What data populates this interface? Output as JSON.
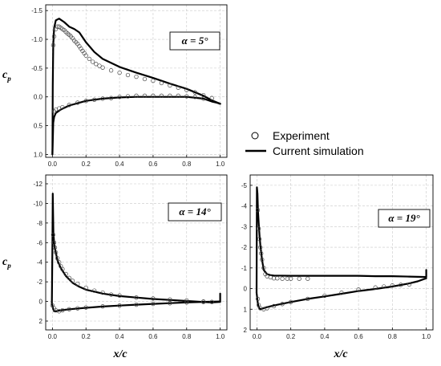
{
  "legend": {
    "items": [
      {
        "label": "Experiment",
        "marker": "circle"
      },
      {
        "label": "Current simulation",
        "marker": "line"
      }
    ]
  },
  "labels": {
    "ylabel_main": "c",
    "ylabel_sub": "p",
    "xlabel": "x/c"
  },
  "chart_data": [
    {
      "type": "line",
      "annotation": "α = 5°",
      "xlim": [
        -0.04,
        1.04
      ],
      "ylim": [
        1.05,
        -1.6
      ],
      "y_inverted": true,
      "grid": true,
      "x_ticks": [
        "0.0",
        "0.2",
        "0.4",
        "0.6",
        "0.8",
        "1.0"
      ],
      "y_ticks": [
        "-1.5",
        "-1.0",
        "-0.5",
        "0.0",
        "0.5",
        "1.0"
      ],
      "x_tick_values": [
        0,
        0.2,
        0.4,
        0.6,
        0.8,
        1.0
      ],
      "y_tick_values": [
        -1.5,
        -1.0,
        -0.5,
        0,
        0.5,
        1.0
      ],
      "series": [
        {
          "name": "Current simulation",
          "style": "line",
          "paths": [
            {
              "x": [
                0,
                0.002,
                0.005,
                0.01,
                0.02,
                0.04,
                0.07,
                0.1,
                0.13,
                0.16,
                0.2,
                0.25,
                0.3,
                0.4,
                0.5,
                0.6,
                0.7,
                0.8,
                0.9,
                0.95,
                1.0
              ],
              "y": [
                1.0,
                -0.2,
                -0.9,
                -1.2,
                -1.33,
                -1.36,
                -1.3,
                -1.22,
                -1.18,
                -1.12,
                -0.95,
                -0.78,
                -0.66,
                -0.52,
                -0.42,
                -0.33,
                -0.23,
                -0.14,
                -0.02,
                0.06,
                0.12
              ]
            },
            {
              "x": [
                0,
                0.005,
                0.01,
                0.02,
                0.05,
                0.1,
                0.2,
                0.3,
                0.4,
                0.5,
                0.6,
                0.7,
                0.8,
                0.9,
                0.95,
                0.98,
                1.0
              ],
              "y": [
                1.0,
                0.45,
                0.35,
                0.28,
                0.22,
                0.15,
                0.07,
                0.03,
                0.01,
                0.0,
                0.0,
                0.0,
                0.0,
                0.03,
                0.08,
                0.1,
                0.12
              ]
            }
          ]
        },
        {
          "name": "Experiment",
          "style": "markers",
          "paths": [
            {
              "x": [
                0.005,
                0.01,
                0.02,
                0.03,
                0.04,
                0.05,
                0.06,
                0.07,
                0.08,
                0.09,
                0.1,
                0.11,
                0.12,
                0.13,
                0.14,
                0.15,
                0.16,
                0.17,
                0.18,
                0.19,
                0.2,
                0.22,
                0.24,
                0.26,
                0.28,
                0.3,
                0.35,
                0.4,
                0.45,
                0.5,
                0.55,
                0.6,
                0.65,
                0.7,
                0.75,
                0.8,
                0.85,
                0.9,
                0.95
              ],
              "y": [
                -0.9,
                -1.05,
                -1.18,
                -1.22,
                -1.22,
                -1.2,
                -1.18,
                -1.16,
                -1.13,
                -1.1,
                -1.08,
                -1.05,
                -1.02,
                -0.98,
                -0.95,
                -0.92,
                -0.88,
                -0.84,
                -0.8,
                -0.76,
                -0.72,
                -0.66,
                -0.61,
                -0.57,
                -0.54,
                -0.51,
                -0.46,
                -0.42,
                -0.38,
                -0.35,
                -0.31,
                -0.28,
                -0.24,
                -0.2,
                -0.16,
                -0.12,
                -0.08,
                -0.03,
                0.02
              ]
            },
            {
              "x": [
                0.01,
                0.02,
                0.04,
                0.06,
                0.1,
                0.15,
                0.2,
                0.25,
                0.3,
                0.35,
                0.4,
                0.45,
                0.5,
                0.55,
                0.6,
                0.65,
                0.7,
                0.75,
                0.8,
                0.85,
                0.9
              ],
              "y": [
                0.25,
                0.22,
                0.2,
                0.18,
                0.14,
                0.1,
                0.07,
                0.05,
                0.03,
                0.02,
                0.0,
                -0.01,
                -0.02,
                -0.02,
                -0.02,
                -0.02,
                -0.02,
                -0.02,
                -0.01,
                0.0,
                0.03
              ]
            }
          ]
        }
      ]
    },
    {
      "type": "line",
      "annotation": "α = 14°",
      "xlim": [
        -0.04,
        1.04
      ],
      "ylim": [
        2.9,
        -12.9
      ],
      "y_inverted": true,
      "grid": true,
      "x_ticks": [
        "0.0",
        "0.2",
        "0.4",
        "0.6",
        "0.8",
        "1.0"
      ],
      "y_ticks": [
        "-12",
        "-10",
        "-8",
        "-6",
        "-4",
        "-2",
        "0",
        "2"
      ],
      "x_tick_values": [
        0,
        0.2,
        0.4,
        0.6,
        0.8,
        1.0
      ],
      "y_tick_values": [
        -12,
        -10,
        -8,
        -6,
        -4,
        -2,
        0,
        2
      ],
      "series": [
        {
          "name": "Current simulation",
          "style": "line",
          "paths": [
            {
              "x": [
                -0.003,
                0,
                0.002,
                0.004,
                0.006,
                0.01,
                0.015,
                0.02,
                0.03,
                0.05,
                0.08,
                0.12,
                0.16,
                0.2,
                0.3,
                0.4,
                0.5,
                0.6,
                0.7,
                0.8,
                0.9,
                0.95,
                1.0,
                1.0
              ],
              "y": [
                0.2,
                -6.0,
                -11.0,
                -9.0,
                -7.0,
                -6.0,
                -5.4,
                -5.0,
                -4.2,
                -3.4,
                -2.6,
                -1.9,
                -1.5,
                -1.2,
                -0.8,
                -0.55,
                -0.4,
                -0.25,
                -0.15,
                -0.05,
                0.05,
                0.1,
                0.05,
                -0.8
              ]
            },
            {
              "x": [
                -0.003,
                0.005,
                0.01,
                0.02,
                0.05,
                0.1,
                0.2,
                0.3,
                0.4,
                0.5,
                0.6,
                0.7,
                0.8,
                0.9,
                1.0
              ],
              "y": [
                0.2,
                0.8,
                1.0,
                1.0,
                0.9,
                0.8,
                0.65,
                0.52,
                0.42,
                0.33,
                0.25,
                0.17,
                0.1,
                0.04,
                0.0
              ]
            }
          ]
        },
        {
          "name": "Experiment",
          "style": "markers",
          "paths": [
            {
              "x": [
                0.005,
                0.01,
                0.015,
                0.02,
                0.03,
                0.04,
                0.05,
                0.06,
                0.08,
                0.1,
                0.12,
                0.15,
                0.2,
                0.25,
                0.3,
                0.35,
                0.4,
                0.5,
                0.6,
                0.7,
                0.8,
                0.9,
                0.95
              ],
              "y": [
                -6.8,
                -6.0,
                -5.5,
                -5.0,
                -4.4,
                -4.0,
                -3.6,
                -3.3,
                -2.8,
                -2.4,
                -2.1,
                -1.8,
                -1.4,
                -1.1,
                -0.9,
                -0.7,
                -0.6,
                -0.4,
                -0.3,
                -0.2,
                -0.1,
                0.0,
                0.05
              ]
            },
            {
              "x": [
                0.0,
                0.01,
                0.02,
                0.04,
                0.06,
                0.1,
                0.15,
                0.2,
                0.3,
                0.4,
                0.5,
                0.6,
                0.7,
                0.8,
                0.9
              ],
              "y": [
                0.4,
                0.7,
                0.9,
                1.0,
                0.9,
                0.8,
                0.7,
                0.62,
                0.5,
                0.42,
                0.33,
                0.25,
                0.18,
                0.11,
                0.05
              ]
            }
          ]
        }
      ]
    },
    {
      "type": "line",
      "annotation": "α = 19°",
      "xlim": [
        -0.04,
        1.04
      ],
      "ylim": [
        2.0,
        -5.5
      ],
      "y_inverted": true,
      "grid": true,
      "x_ticks": [
        "0.0",
        "0.2",
        "0.4",
        "0.6",
        "0.8",
        "1.0"
      ],
      "y_ticks": [
        "-5",
        "-4",
        "-3",
        "-2",
        "-1",
        "0",
        "1",
        "2"
      ],
      "x_tick_values": [
        0,
        0.2,
        0.4,
        0.6,
        0.8,
        1.0
      ],
      "y_tick_values": [
        -5,
        -4,
        -3,
        -2,
        -1,
        0,
        1,
        2
      ],
      "series": [
        {
          "name": "Current simulation",
          "style": "line",
          "paths": [
            {
              "x": [
                -0.002,
                0,
                0.003,
                0.006,
                0.01,
                0.015,
                0.02,
                0.03,
                0.04,
                0.06,
                0.08,
                0.1,
                0.2,
                0.3,
                0.4,
                0.5,
                0.6,
                0.7,
                0.8,
                0.9,
                0.95,
                1.0,
                1.0
              ],
              "y": [
                0.2,
                -4.9,
                -4.6,
                -3.8,
                -3.2,
                -2.6,
                -2.1,
                -1.4,
                -0.9,
                -0.7,
                -0.65,
                -0.63,
                -0.62,
                -0.62,
                -0.62,
                -0.62,
                -0.62,
                -0.6,
                -0.6,
                -0.58,
                -0.57,
                -0.56,
                -0.9
              ]
            },
            {
              "x": [
                -0.002,
                0.005,
                0.01,
                0.02,
                0.05,
                0.1,
                0.2,
                0.3,
                0.4,
                0.5,
                0.6,
                0.7,
                0.8,
                0.9,
                0.95,
                1.0
              ],
              "y": [
                0.2,
                0.7,
                0.9,
                1.0,
                0.92,
                0.82,
                0.65,
                0.5,
                0.38,
                0.25,
                0.12,
                0.02,
                -0.1,
                -0.25,
                -0.35,
                -0.5
              ]
            }
          ]
        },
        {
          "name": "Experiment",
          "style": "markers",
          "paths": [
            {
              "x": [
                0.005,
                0.01,
                0.015,
                0.02,
                0.025,
                0.03,
                0.04,
                0.05,
                0.06,
                0.08,
                0.1,
                0.12,
                0.15,
                0.18,
                0.2,
                0.25,
                0.3
              ],
              "y": [
                -3.8,
                -2.9,
                -2.4,
                -2.0,
                -1.7,
                -1.4,
                -1.0,
                -0.7,
                -0.6,
                -0.55,
                -0.5,
                -0.5,
                -0.48,
                -0.48,
                -0.48,
                -0.48,
                -0.48
              ]
            },
            {
              "x": [
                0.005,
                0.01,
                0.02,
                0.04,
                0.06,
                0.1,
                0.15,
                0.2,
                0.3,
                0.4,
                0.5,
                0.6,
                0.7,
                0.75,
                0.8,
                0.85,
                0.9
              ],
              "y": [
                0.5,
                0.8,
                0.95,
                1.0,
                0.95,
                0.85,
                0.75,
                0.65,
                0.5,
                0.35,
                0.2,
                0.05,
                -0.05,
                -0.1,
                -0.15,
                -0.18,
                -0.2
              ]
            }
          ]
        }
      ]
    }
  ]
}
